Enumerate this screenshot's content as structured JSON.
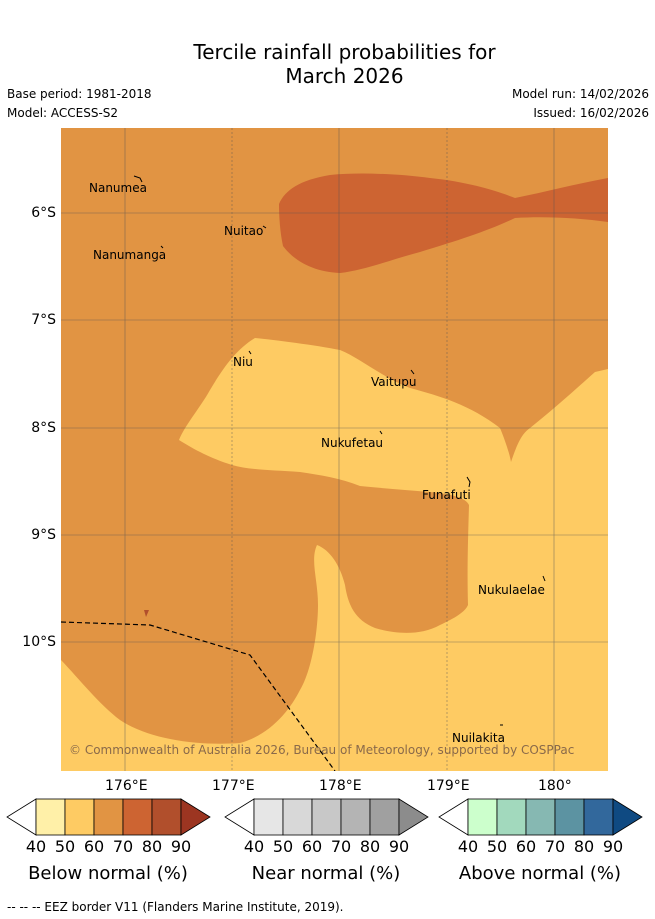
{
  "title": {
    "line1": "Tercile rainfall probabilities for",
    "line2": "March 2026"
  },
  "meta": {
    "base_period": "Base period: 1981-2018",
    "model": "Model: ACCESS-S2",
    "model_run": "Model run: 14/02/2026",
    "issued": "Issued: 16/02/2026"
  },
  "axes": {
    "lat_labels": [
      "6°S",
      "7°S",
      "8°S",
      "9°S",
      "10°S"
    ],
    "lon_labels": [
      "176°E",
      "177°E",
      "178°E",
      "179°E",
      "180°"
    ]
  },
  "places": [
    {
      "name": "Nanumea"
    },
    {
      "name": "Nuitao"
    },
    {
      "name": "Nanumanga"
    },
    {
      "name": "Niu"
    },
    {
      "name": "Vaitupu"
    },
    {
      "name": "Nukufetau"
    },
    {
      "name": "Funafuti"
    },
    {
      "name": "Nukulaelae"
    },
    {
      "name": "Nuilakita"
    }
  ],
  "copyright": "© Commonwealth of Australia 2026, Bureau of Meteorology, supported by COSPPac",
  "legend": {
    "ticks": [
      "40",
      "50",
      "60",
      "70",
      "80",
      "90"
    ],
    "below": {
      "label": "Below normal (%)",
      "colors": [
        "#fff0a8",
        "#fecb63",
        "#e19443",
        "#cd6432",
        "#b14f2c",
        "#9c3521"
      ]
    },
    "near": {
      "label": "Near normal (%)",
      "colors": [
        "#e6e6e6",
        "#d8d8d8",
        "#c8c8c8",
        "#b4b4b4",
        "#a0a0a0",
        "#8c8c8c"
      ]
    },
    "above": {
      "label": "Above normal (%)",
      "colors": [
        "#ccffcc",
        "#a2d9bd",
        "#86b8b2",
        "#5c93a2",
        "#32689c",
        "#0f4a82"
      ]
    }
  },
  "footnote": "-- -- -- EEZ border V11 (Flanders Marine Institute, 2019)."
}
